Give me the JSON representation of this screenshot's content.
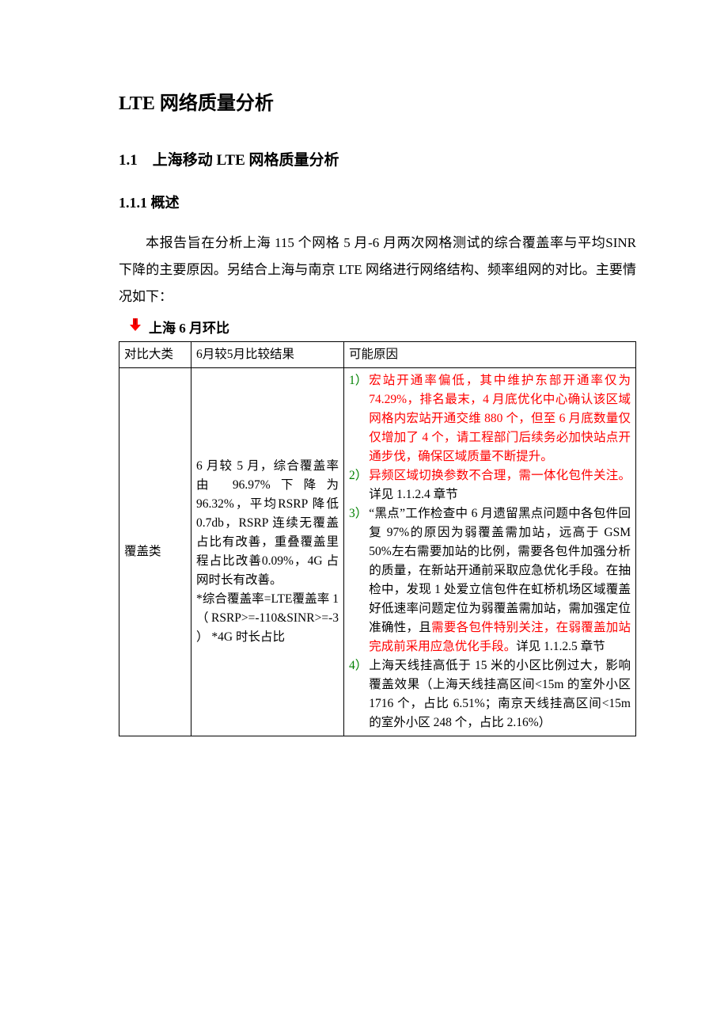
{
  "title": "LTE 网络质量分析",
  "h2": "1.1　上海移动 LTE 网格质量分析",
  "h3": "1.1.1 概述",
  "para1": "本报告旨在分析上海 115 个网格 5 月-6 月两次网格测试的综合覆盖率与平均SINR 下降的主要原因。另结合上海与南京 LTE 网络进行网络结构、频率组网的对比。主要情况如下：",
  "bullet": {
    "icon_color": "#ff0000",
    "text": "上海 6 月环比"
  },
  "table": {
    "head": {
      "c1": "对比大类",
      "c2": "6月较5月比较结果",
      "c3": "可能原因"
    },
    "row1": {
      "c1": "覆盖类",
      "c2": "6 月较 5 月，综合覆盖率由 96.97%下降为 96.32%，平均RSRP 降低 0.7db，RSRP 连续无覆盖占比有改善，重叠覆盖里程占比改善0.09%，4G 占网时长有改善。\n*综合覆盖率=LTE覆盖率 1（RSRP>=-110&SINR>=-3 ） *4G 时长占比",
      "c3": [
        {
          "num": "1）",
          "num_color": "green",
          "parts": [
            {
              "t": "宏站开通率偏低，其中维护东部开通率仅为74.29%，排名最末，4 月底优化中心确认该区域网格内宏站开通交维 880 个，但至 6 月底数量仅仅增加了 4 个，请工程部门后续务必加快站点开通步伐，确保区域质量不断提升。",
              "c": "red"
            }
          ]
        },
        {
          "num": "2）",
          "num_color": "green",
          "parts": [
            {
              "t": "异频区域切换参数不合理，需一体化包件关注。",
              "c": "red"
            },
            {
              "t": "详见 1.1.2.4 章节",
              "c": "black"
            }
          ]
        },
        {
          "num": "3）",
          "num_color": "green",
          "parts": [
            {
              "t": "“黑点”工作检查中 6 月遗留黑点问题中各包件回复 97%的原因为弱覆盖需加站，远高于 GSM 50%左右需要加站的比例，需要各包件加强分析的质量，在新站开通前采取应急优化手段。在抽检中，发现 1 处爱立信包件在虹桥机场区域覆盖好低速率问题定位为弱覆盖需加站，需加强定位准确性，且",
              "c": "black"
            },
            {
              "t": "需要各包件特别关注，在弱覆盖加站完成前采用应急优化手段。",
              "c": "red"
            },
            {
              "t": "详见 1.1.2.5 章节",
              "c": "black"
            }
          ]
        },
        {
          "num": "4）",
          "num_color": "green",
          "parts": [
            {
              "t": "上海天线挂高低于 15 米的小区比例过大，影响覆盖效果（上海天线挂高区间<15m 的室外小区 1716 个，占比 6.51%；南京天线挂高区间<15m 的室外小区 248 个，占比 2.16%）",
              "c": "black"
            }
          ]
        }
      ]
    }
  }
}
